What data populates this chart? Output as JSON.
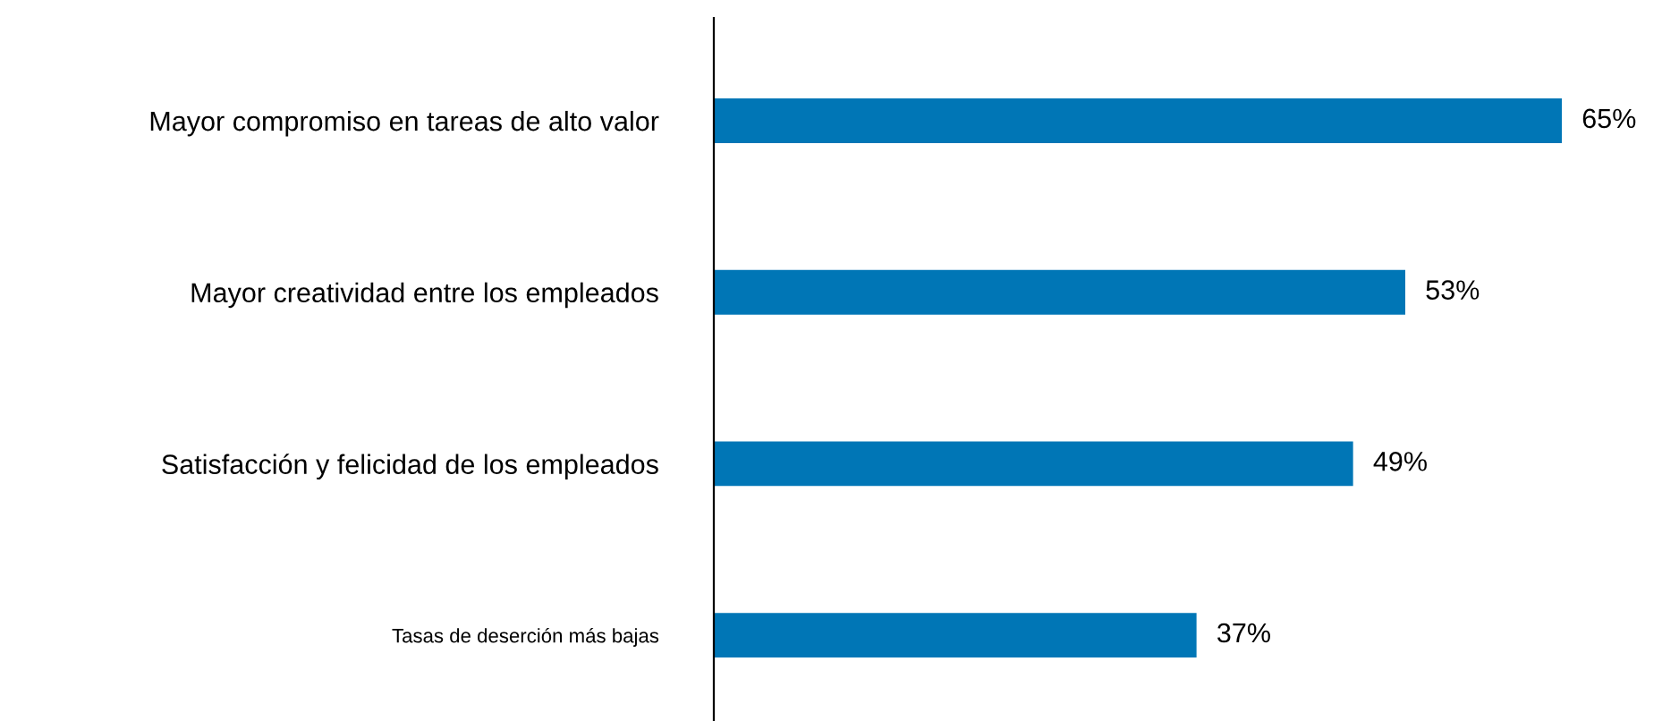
{
  "chart_data": {
    "type": "bar",
    "orientation": "horizontal",
    "categories": [
      "Mayor compromiso en tareas de alto valor",
      "Mayor creatividad entre los empleados",
      "Satisfacción y felicidad de los empleados",
      "Tasas de deserción más bajas"
    ],
    "values": [
      65,
      53,
      49,
      37
    ],
    "value_labels": [
      "65%",
      "53%",
      "49%",
      "37%"
    ],
    "color": "#0076b6",
    "grid": false,
    "legend": false,
    "tick_labels": "y"
  }
}
